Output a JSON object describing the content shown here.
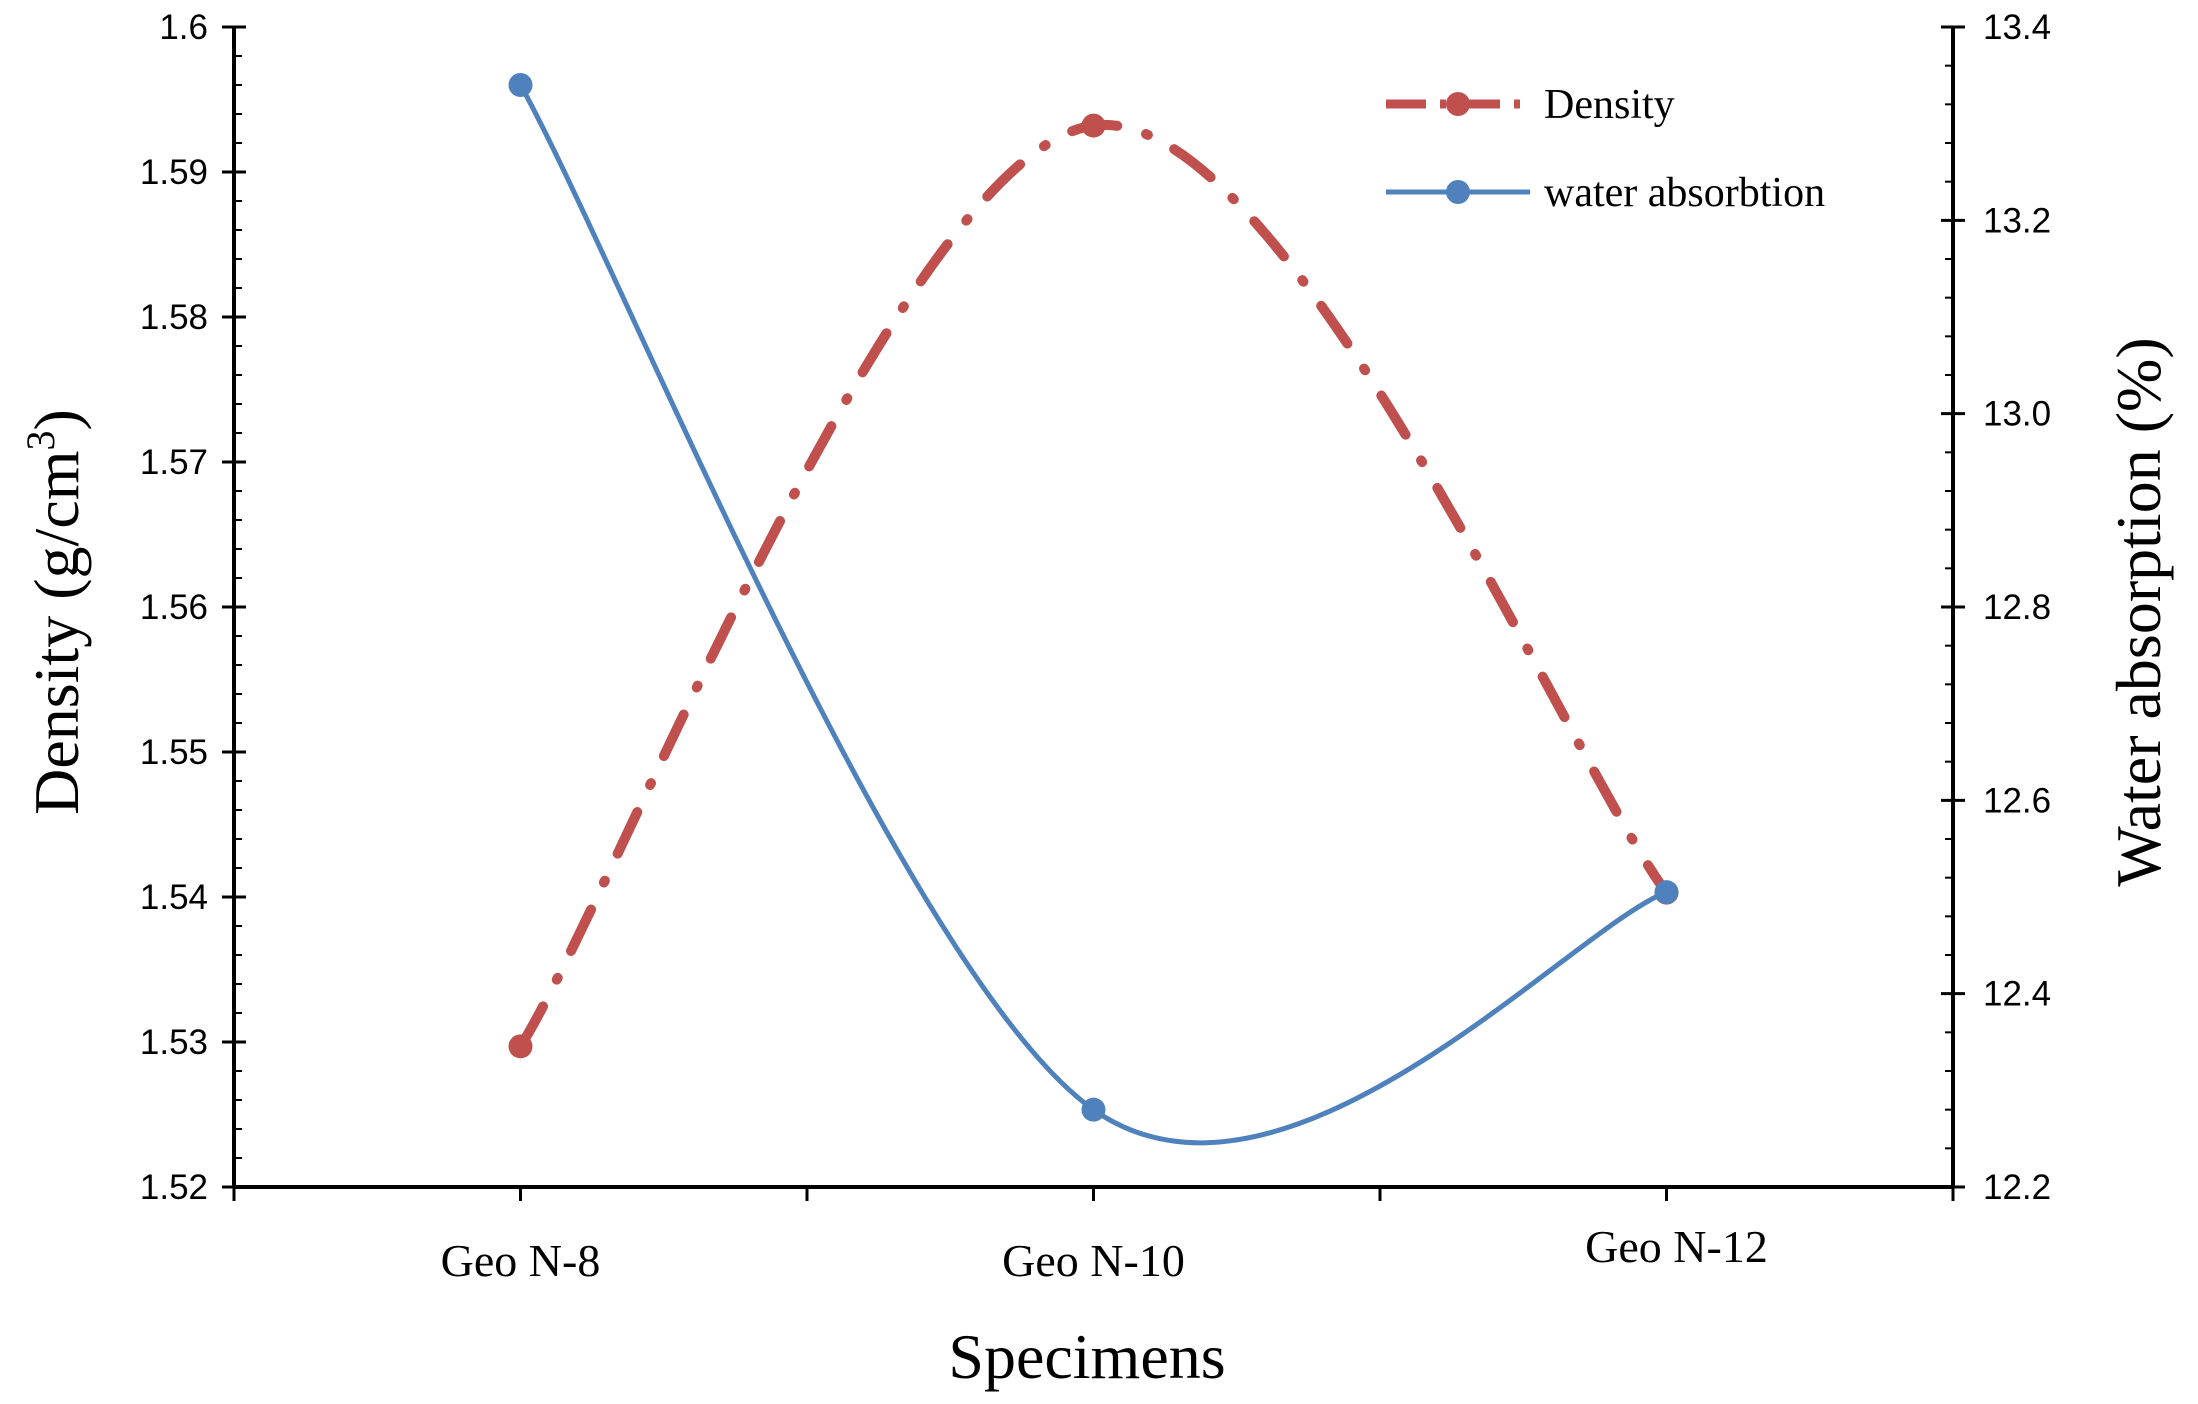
{
  "chart_data": {
    "type": "line",
    "categories": [
      "Geo N-8",
      "Geo N-10",
      "Geo N-12"
    ],
    "series": [
      {
        "name": "Density",
        "axis": "left",
        "values": [
          1.5297,
          1.5932,
          1.5403
        ],
        "color": "#c0504d",
        "style": "dash-dot",
        "smooth": true
      },
      {
        "name": "water absorbtion",
        "axis": "right",
        "values": [
          13.34,
          12.28,
          12.505
        ],
        "color": "#4f81bd",
        "style": "solid",
        "smooth": true
      }
    ],
    "left_axis": {
      "label": "Density  (g/cm",
      "label_sup": "3",
      "label_close": ")",
      "min": 1.52,
      "max": 1.6,
      "ticks": [
        "1.52",
        "1.53",
        "1.54",
        "1.55",
        "1.56",
        "1.57",
        "1.58",
        "1.59",
        "1.6"
      ]
    },
    "right_axis": {
      "label": "Water absorption (%)",
      "min": 12.2,
      "max": 13.4,
      "ticks": [
        "12.2",
        "12.4",
        "12.6",
        "12.8",
        "13.0",
        "13.2",
        "13.4"
      ]
    },
    "xlabel": "Specimens",
    "legend_position": "top-right"
  }
}
